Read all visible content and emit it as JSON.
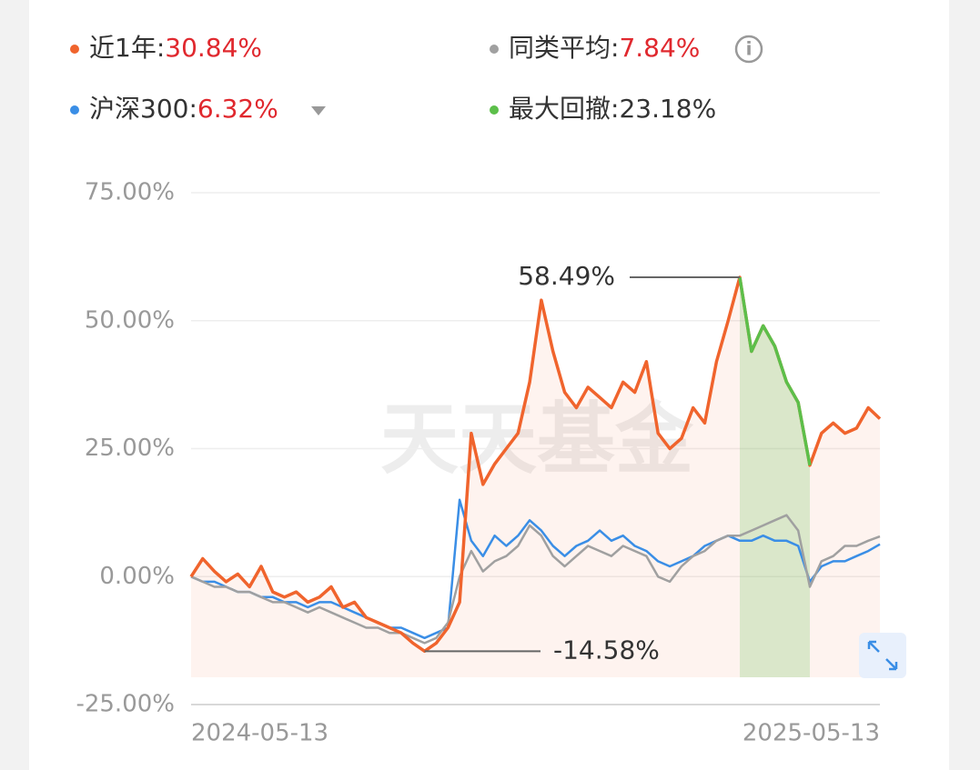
{
  "chart_data": {
    "type": "line",
    "watermark": "天天基金",
    "categories": [
      "2024-05-13",
      null,
      null,
      null,
      null,
      null,
      null,
      null,
      null,
      null,
      null,
      null,
      null,
      null,
      null,
      null,
      null,
      null,
      null,
      null,
      null,
      null,
      null,
      null,
      null,
      null,
      null,
      null,
      null,
      null,
      null,
      null,
      null,
      null,
      null,
      null,
      null,
      null,
      null,
      null,
      null,
      null,
      null,
      null,
      null,
      null,
      null,
      null,
      null,
      null,
      null,
      null,
      null,
      null,
      null,
      null,
      null,
      null,
      null,
      "2025-05-13"
    ],
    "series": [
      {
        "name": "近1年",
        "color": "#f0642d",
        "legend_value": 30.84,
        "legend_label": "30.84%",
        "values": [
          0,
          3.5,
          1,
          -1,
          0.5,
          -2,
          2,
          -3,
          -4,
          -3,
          -5,
          -4,
          -2,
          -6,
          -5,
          -8,
          -9,
          -10,
          -11,
          -13,
          -14.58,
          -13,
          -10,
          -5,
          28,
          18,
          22,
          25,
          28,
          38,
          54,
          44,
          36,
          33,
          37,
          35,
          33,
          38,
          36,
          42,
          28,
          25,
          27,
          33,
          30,
          42,
          50,
          58.49,
          44,
          49,
          45,
          38,
          34,
          21.75,
          28,
          30,
          28,
          29,
          33,
          30.84
        ]
      },
      {
        "name": "同类平均",
        "color": "#a0a0a0",
        "legend_value": 7.84,
        "legend_label": "7.84%",
        "values": [
          0,
          -1,
          -2,
          -2,
          -3,
          -3,
          -4,
          -5,
          -5,
          -6,
          -7,
          -6,
          -7,
          -8,
          -9,
          -10,
          -10,
          -11,
          -11,
          -12,
          -13,
          -12,
          -9,
          0,
          5,
          1,
          3,
          4,
          6,
          10,
          8,
          4,
          2,
          4,
          6,
          5,
          4,
          6,
          5,
          4,
          0,
          -1,
          2,
          4,
          5,
          7,
          8,
          8,
          9,
          10,
          11,
          12,
          9,
          -2,
          3,
          4,
          6,
          6,
          7,
          7.84
        ]
      },
      {
        "name": "沪深300",
        "color": "#3a8ee6",
        "legend_value": 6.32,
        "legend_label": "6.32%",
        "values": [
          0,
          -1,
          -1,
          -2,
          -3,
          -3,
          -4,
          -4,
          -5,
          -5,
          -6,
          -5,
          -5,
          -6,
          -7,
          -8,
          -9,
          -10,
          -10,
          -11,
          -12,
          -11,
          -10,
          15,
          7,
          4,
          8,
          6,
          8,
          11,
          9,
          6,
          4,
          6,
          7,
          9,
          7,
          8,
          6,
          5,
          3,
          2,
          3,
          4,
          6,
          7,
          8,
          7,
          7,
          8,
          7,
          7,
          6,
          -1,
          2,
          3,
          3,
          4,
          5,
          6.32
        ]
      }
    ],
    "drawdown": {
      "name": "最大回撤",
      "color": "#5cbf4a",
      "value": 23.18,
      "label": "23.18%"
    },
    "annotations": [
      {
        "value": 58.49,
        "label": "58.49%"
      },
      {
        "value": -14.58,
        "label": "-14.58%"
      }
    ],
    "ylim": [
      -25,
      75
    ],
    "yticks": [
      {
        "value": -25,
        "label": "-25.00%"
      },
      {
        "value": 0,
        "label": "0.00%"
      },
      {
        "value": 25,
        "label": "25.00%"
      },
      {
        "value": 50,
        "label": "50.00%"
      },
      {
        "value": 75,
        "label": "75.00%"
      }
    ],
    "grid": true
  }
}
